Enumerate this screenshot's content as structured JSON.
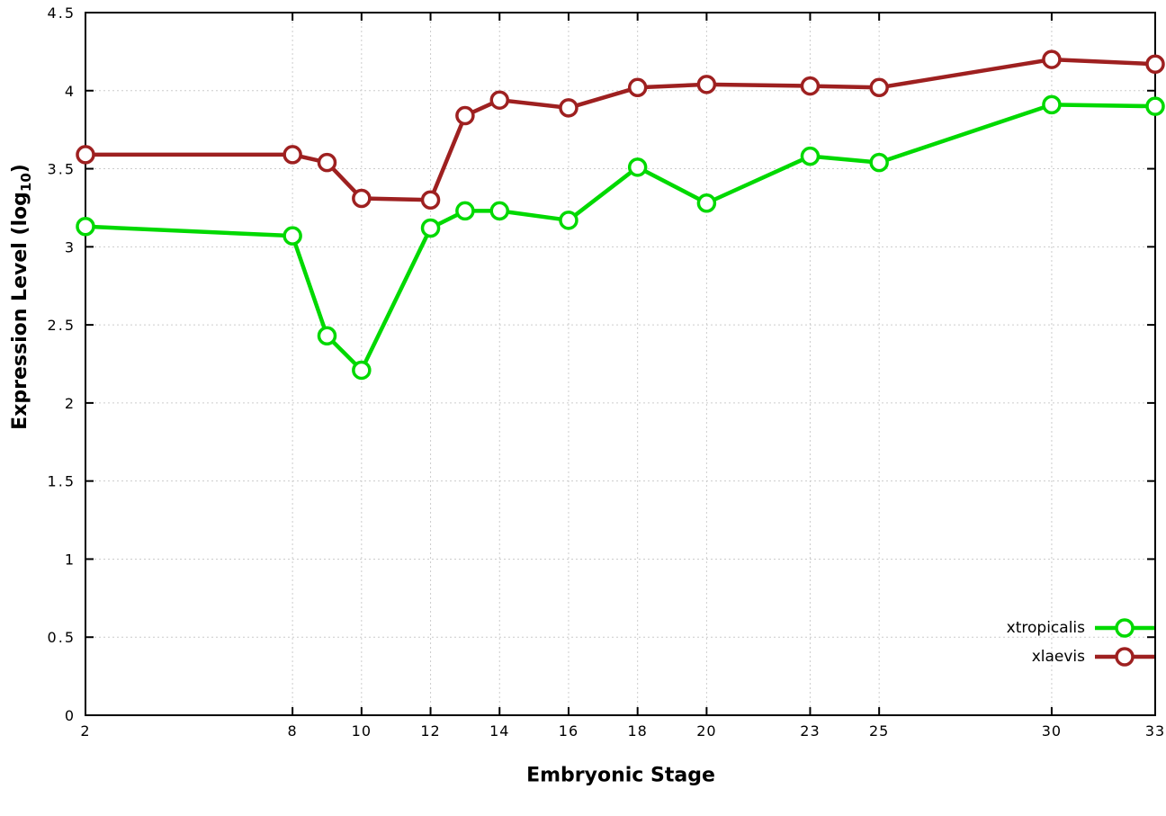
{
  "chart_data": {
    "type": "line",
    "title": "",
    "xlabel": "Embryonic Stage",
    "ylabel": "Expression Level (log10)",
    "ylabel_parts": {
      "main": "Expression Level (log",
      "sub": "10",
      "close": ")"
    },
    "x": [
      2,
      8,
      9,
      10,
      12,
      13,
      14,
      16,
      18,
      20,
      23,
      25,
      30,
      33
    ],
    "xlim": [
      2,
      33
    ],
    "ylim": [
      0,
      4.5
    ],
    "x_ticks": [
      2,
      8,
      10,
      12,
      14,
      16,
      18,
      20,
      23,
      25,
      30,
      33
    ],
    "x_tick_labels": [
      "2",
      "8",
      "10",
      "12",
      "14",
      "16",
      "18",
      "20",
      "23",
      "25",
      "30",
      "33"
    ],
    "y_ticks": [
      0,
      0.5,
      1,
      1.5,
      2,
      2.5,
      3,
      3.5,
      4,
      4.5
    ],
    "y_tick_labels": [
      "0",
      "0.5",
      "1",
      "1.5",
      "2",
      "2.5",
      "3",
      "3.5",
      "4",
      "4.5"
    ],
    "grid": true,
    "legend_position": "bottom-right",
    "marker": "open-circle",
    "colors": {
      "grid": "#cccccc",
      "border": "#000000",
      "background": "#ffffff"
    },
    "series": [
      {
        "name": "xtropicalis",
        "color": "#00d900",
        "values": [
          3.13,
          3.07,
          2.43,
          2.21,
          3.12,
          3.23,
          3.23,
          3.17,
          3.51,
          3.28,
          3.58,
          3.54,
          3.91,
          3.9
        ]
      },
      {
        "name": "xlaevis",
        "color": "#9e2020",
        "values": [
          3.59,
          3.59,
          3.54,
          3.31,
          3.3,
          3.84,
          3.94,
          3.89,
          4.02,
          4.04,
          4.03,
          4.02,
          4.2,
          4.17
        ]
      }
    ]
  }
}
